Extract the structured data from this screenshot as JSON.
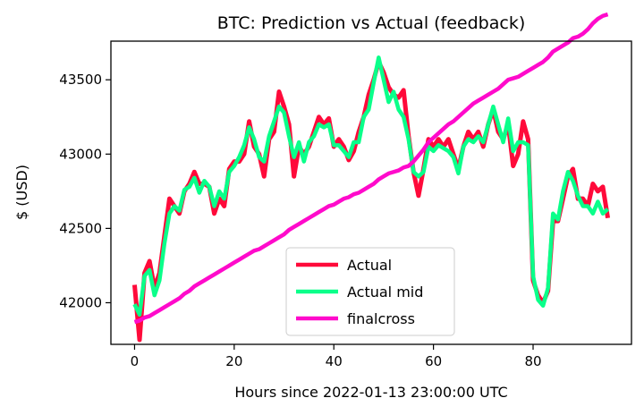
{
  "chart_data": {
    "type": "line",
    "title": "BTC: Prediction vs Actual (feedback)",
    "xlabel": "Hours since 2022-01-13 23:00:00 UTC",
    "ylabel": "$ (USD)",
    "xlim": [
      -4.75,
      99.75
    ],
    "ylim": [
      41720,
      43760
    ],
    "xticks": [
      0,
      20,
      40,
      60,
      80
    ],
    "yticks": [
      42000,
      42500,
      43000,
      43500
    ],
    "legend_placement": "lower-center",
    "grid": false,
    "series": [
      {
        "name": "Actual",
        "color": "#ff0a3a",
        "x": [
          0,
          1,
          2,
          3,
          4,
          5,
          6,
          7,
          8,
          9,
          10,
          11,
          12,
          13,
          14,
          15,
          16,
          17,
          18,
          19,
          20,
          21,
          22,
          23,
          24,
          25,
          26,
          27,
          28,
          29,
          30,
          31,
          32,
          33,
          34,
          35,
          36,
          37,
          38,
          39,
          40,
          41,
          42,
          43,
          44,
          45,
          46,
          47,
          48,
          49,
          50,
          51,
          52,
          53,
          54,
          55,
          56,
          57,
          58,
          59,
          60,
          61,
          62,
          63,
          64,
          65,
          66,
          67,
          68,
          69,
          70,
          71,
          72,
          73,
          74,
          75,
          76,
          77,
          78,
          79,
          80,
          81,
          82,
          83,
          84,
          85,
          86,
          87,
          88,
          89,
          90,
          91,
          92,
          93,
          94,
          95
        ],
        "values": [
          42120,
          41750,
          42200,
          42280,
          42100,
          42200,
          42450,
          42700,
          42650,
          42600,
          42750,
          42800,
          42880,
          42800,
          42800,
          42780,
          42600,
          42700,
          42650,
          42900,
          42950,
          42950,
          43000,
          43220,
          43050,
          43000,
          42850,
          43100,
          43150,
          43420,
          43320,
          43200,
          42850,
          43050,
          43000,
          43050,
          43150,
          43250,
          43200,
          43240,
          43050,
          43100,
          43050,
          42960,
          43020,
          43150,
          43250,
          43400,
          43500,
          43620,
          43550,
          43450,
          43400,
          43380,
          43430,
          43120,
          42880,
          42720,
          42900,
          43100,
          43050,
          43100,
          43050,
          43100,
          43000,
          42900,
          43050,
          43150,
          43100,
          43150,
          43050,
          43200,
          43300,
          43150,
          43100,
          43200,
          42920,
          43000,
          43220,
          43100,
          42150,
          42050,
          42000,
          42080,
          42550,
          42550,
          42700,
          42850,
          42900,
          42700,
          42700,
          42650,
          42800,
          42750,
          42780,
          42570
        ]
      },
      {
        "name": "Actual mid",
        "color": "#0aff8a",
        "x": [
          0,
          1,
          2,
          3,
          4,
          5,
          6,
          7,
          8,
          9,
          10,
          11,
          12,
          13,
          14,
          15,
          16,
          17,
          18,
          19,
          20,
          21,
          22,
          23,
          24,
          25,
          26,
          27,
          28,
          29,
          30,
          31,
          32,
          33,
          34,
          35,
          36,
          37,
          38,
          39,
          40,
          41,
          42,
          43,
          44,
          45,
          46,
          47,
          48,
          49,
          50,
          51,
          52,
          53,
          54,
          55,
          56,
          57,
          58,
          59,
          60,
          61,
          62,
          63,
          64,
          65,
          66,
          67,
          68,
          69,
          70,
          71,
          72,
          73,
          74,
          75,
          76,
          77,
          78,
          79,
          80,
          81,
          82,
          83,
          84,
          85,
          86,
          87,
          88,
          89,
          90,
          91,
          92,
          93,
          94,
          95
        ],
        "values": [
          41990,
          41920,
          42180,
          42220,
          42050,
          42150,
          42400,
          42600,
          42650,
          42620,
          42760,
          42780,
          42840,
          42740,
          42820,
          42780,
          42650,
          42750,
          42700,
          42880,
          42920,
          42980,
          43060,
          43180,
          43100,
          42980,
          42950,
          43120,
          43220,
          43320,
          43280,
          43120,
          42980,
          43080,
          42950,
          43080,
          43120,
          43200,
          43180,
          43200,
          43060,
          43060,
          43020,
          42980,
          43080,
          43080,
          43250,
          43300,
          43480,
          43650,
          43500,
          43350,
          43420,
          43300,
          43250,
          43100,
          42880,
          42850,
          42880,
          43050,
          43020,
          43060,
          43040,
          43020,
          42980,
          42870,
          43050,
          43100,
          43080,
          43120,
          43080,
          43200,
          43320,
          43200,
          43080,
          43240,
          43020,
          43080,
          43080,
          43060,
          42180,
          42020,
          41980,
          42100,
          42600,
          42560,
          42750,
          42880,
          42820,
          42720,
          42650,
          42650,
          42600,
          42680,
          42600,
          42630
        ]
      },
      {
        "name": "finalcross",
        "color": "#ff0acb",
        "x": [
          0,
          1,
          2,
          3,
          4,
          5,
          6,
          7,
          8,
          9,
          10,
          11,
          12,
          13,
          14,
          15,
          16,
          17,
          18,
          19,
          20,
          21,
          22,
          23,
          24,
          25,
          26,
          27,
          28,
          29,
          30,
          31,
          32,
          33,
          34,
          35,
          36,
          37,
          38,
          39,
          40,
          41,
          42,
          43,
          44,
          45,
          46,
          47,
          48,
          49,
          50,
          51,
          52,
          53,
          54,
          55,
          56,
          57,
          58,
          59,
          60,
          61,
          62,
          63,
          64,
          65,
          66,
          67,
          68,
          69,
          70,
          71,
          72,
          73,
          74,
          75,
          76,
          77,
          78,
          79,
          80,
          81,
          82,
          83,
          84,
          85,
          86,
          87,
          88,
          89,
          90,
          91,
          92,
          93,
          94,
          95
        ],
        "values": [
          41870,
          41880,
          41900,
          41910,
          41930,
          41950,
          41970,
          41990,
          42010,
          42030,
          42060,
          42080,
          42110,
          42130,
          42150,
          42170,
          42190,
          42210,
          42230,
          42250,
          42270,
          42290,
          42310,
          42330,
          42350,
          42360,
          42380,
          42400,
          42420,
          42440,
          42460,
          42490,
          42510,
          42530,
          42550,
          42570,
          42590,
          42610,
          42630,
          42650,
          42660,
          42680,
          42700,
          42710,
          42730,
          42740,
          42760,
          42780,
          42800,
          42830,
          42850,
          42870,
          42880,
          42890,
          42910,
          42920,
          42950,
          42990,
          43030,
          43080,
          43110,
          43140,
          43170,
          43200,
          43220,
          43250,
          43280,
          43310,
          43340,
          43360,
          43380,
          43400,
          43420,
          43440,
          43470,
          43500,
          43510,
          43520,
          43540,
          43560,
          43580,
          43600,
          43620,
          43650,
          43690,
          43710,
          43730,
          43750,
          43780,
          43790,
          43810,
          43840,
          43880,
          43910,
          43930,
          43940
        ]
      }
    ]
  }
}
